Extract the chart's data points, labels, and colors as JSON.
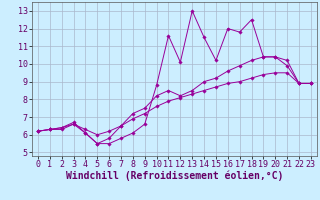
{
  "xlabel": "Windchill (Refroidissement éolien,°C)",
  "ylabel": "",
  "background_color": "#cceeff",
  "grid_color": "#aab8cc",
  "line_color": "#990099",
  "xlim": [
    -0.5,
    23.5
  ],
  "ylim": [
    4.8,
    13.5
  ],
  "xticks": [
    0,
    1,
    2,
    3,
    4,
    5,
    6,
    7,
    8,
    9,
    10,
    11,
    12,
    13,
    14,
    15,
    16,
    17,
    18,
    19,
    20,
    21,
    22,
    23
  ],
  "yticks": [
    5,
    6,
    7,
    8,
    9,
    10,
    11,
    12,
    13
  ],
  "hours": [
    0,
    1,
    2,
    3,
    4,
    5,
    6,
    7,
    8,
    9,
    10,
    11,
    12,
    13,
    14,
    15,
    16,
    17,
    18,
    19,
    20,
    21,
    22,
    23
  ],
  "line1": [
    6.2,
    6.3,
    6.3,
    6.6,
    6.1,
    5.5,
    5.5,
    5.8,
    6.1,
    6.6,
    8.8,
    11.6,
    10.1,
    13.0,
    11.5,
    10.2,
    12.0,
    11.8,
    12.5,
    10.4,
    10.4,
    9.9,
    8.9,
    8.9
  ],
  "line2": [
    6.2,
    6.3,
    6.4,
    6.7,
    6.1,
    5.5,
    5.8,
    6.5,
    7.2,
    7.5,
    8.2,
    8.5,
    8.2,
    8.5,
    9.0,
    9.2,
    9.6,
    9.9,
    10.2,
    10.4,
    10.4,
    10.2,
    8.9,
    8.9
  ],
  "line3": [
    6.2,
    6.3,
    6.4,
    6.6,
    6.3,
    6.0,
    6.2,
    6.5,
    6.9,
    7.2,
    7.6,
    7.9,
    8.1,
    8.3,
    8.5,
    8.7,
    8.9,
    9.0,
    9.2,
    9.4,
    9.5,
    9.5,
    8.9,
    8.9
  ],
  "tick_fontsize": 6,
  "xlabel_fontsize": 7
}
